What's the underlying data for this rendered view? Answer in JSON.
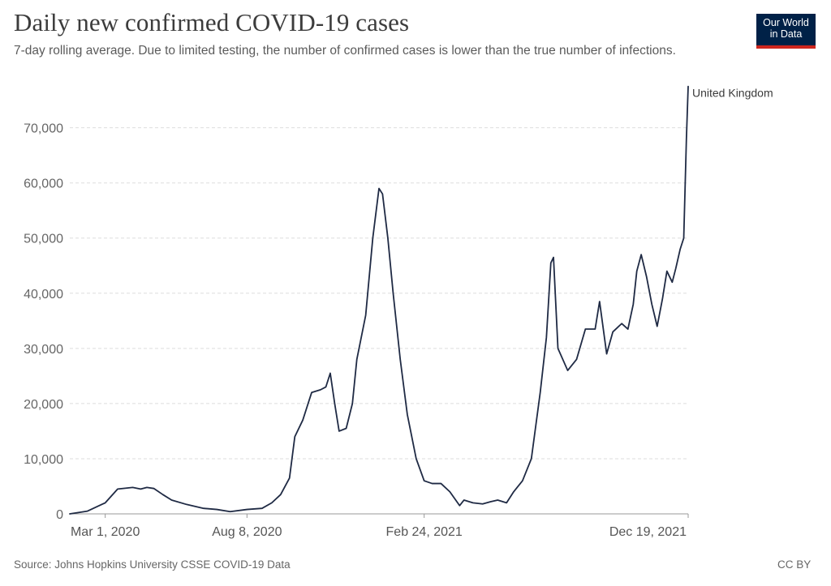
{
  "header": {
    "title": "Daily new confirmed COVID-19 cases",
    "subtitle": "7-day rolling average. Due to limited testing, the number of confirmed cases is lower than the true number of infections."
  },
  "logo": {
    "line1": "Our World",
    "line2": "in Data"
  },
  "footer": {
    "source": "Source: Johns Hopkins University CSSE COVID-19 Data",
    "license": "CC BY"
  },
  "colors": {
    "line": "#1f2a44",
    "grid": "#dddddd",
    "logo_bg": "#002147",
    "logo_accent": "#ce261e"
  },
  "chart_data": {
    "type": "line",
    "xlabel": "",
    "ylabel": "",
    "ylim": [
      0,
      77000
    ],
    "grid": true,
    "x_tick_labels": [
      "Mar 1, 2020",
      "Aug 8, 2020",
      "Feb 24, 2021",
      "Dec 19, 2021"
    ],
    "y_tick_labels": [
      "0",
      "10,000",
      "20,000",
      "30,000",
      "40,000",
      "50,000",
      "60,000",
      "70,000"
    ],
    "y_ticks": [
      0,
      10000,
      20000,
      30000,
      40000,
      50000,
      60000,
      70000
    ],
    "series": [
      {
        "name": "United Kingdom",
        "x": [
          "2020-01-21",
          "2020-02-10",
          "2020-03-01",
          "2020-03-15",
          "2020-04-01",
          "2020-04-10",
          "2020-04-17",
          "2020-04-25",
          "2020-05-05",
          "2020-05-15",
          "2020-06-01",
          "2020-06-20",
          "2020-07-05",
          "2020-07-20",
          "2020-08-08",
          "2020-08-25",
          "2020-09-05",
          "2020-09-15",
          "2020-09-25",
          "2020-10-01",
          "2020-10-10",
          "2020-10-20",
          "2020-10-30",
          "2020-11-05",
          "2020-11-10",
          "2020-11-15",
          "2020-11-20",
          "2020-11-28",
          "2020-12-05",
          "2020-12-10",
          "2020-12-20",
          "2020-12-28",
          "2021-01-04",
          "2021-01-08",
          "2021-01-14",
          "2021-01-20",
          "2021-01-28",
          "2021-02-05",
          "2021-02-15",
          "2021-02-24",
          "2021-03-05",
          "2021-03-15",
          "2021-03-25",
          "2021-04-05",
          "2021-04-10",
          "2021-04-20",
          "2021-05-01",
          "2021-05-10",
          "2021-05-18",
          "2021-05-28",
          "2021-06-05",
          "2021-06-15",
          "2021-06-25",
          "2021-07-05",
          "2021-07-12",
          "2021-07-17",
          "2021-07-20",
          "2021-07-25",
          "2021-08-05",
          "2021-08-15",
          "2021-08-25",
          "2021-09-05",
          "2021-09-10",
          "2021-09-18",
          "2021-09-25",
          "2021-10-05",
          "2021-10-12",
          "2021-10-18",
          "2021-10-22",
          "2021-10-27",
          "2021-11-02",
          "2021-11-08",
          "2021-11-14",
          "2021-11-20",
          "2021-11-25",
          "2021-12-01",
          "2021-12-05",
          "2021-12-10",
          "2021-12-14",
          "2021-12-17",
          "2021-12-19"
        ],
        "y": [
          0,
          500,
          2000,
          4500,
          4800,
          4500,
          4800,
          4600,
          3500,
          2500,
          1700,
          1000,
          800,
          400,
          800,
          1000,
          2000,
          3500,
          6500,
          14000,
          17000,
          22000,
          22500,
          23000,
          25500,
          20000,
          15000,
          15500,
          20000,
          28000,
          36000,
          50000,
          59000,
          58000,
          50000,
          40000,
          28000,
          18000,
          10000,
          6000,
          5500,
          5500,
          4000,
          1500,
          2500,
          2000,
          1800,
          2200,
          2500,
          2000,
          4000,
          6000,
          10000,
          22000,
          32000,
          45500,
          46500,
          30000,
          26000,
          28000,
          33500,
          33500,
          38500,
          29000,
          33000,
          34500,
          33500,
          38000,
          44000,
          47000,
          43000,
          38000,
          34000,
          39000,
          44000,
          42000,
          44500,
          48000,
          50000,
          68000,
          77500
        ]
      }
    ]
  }
}
